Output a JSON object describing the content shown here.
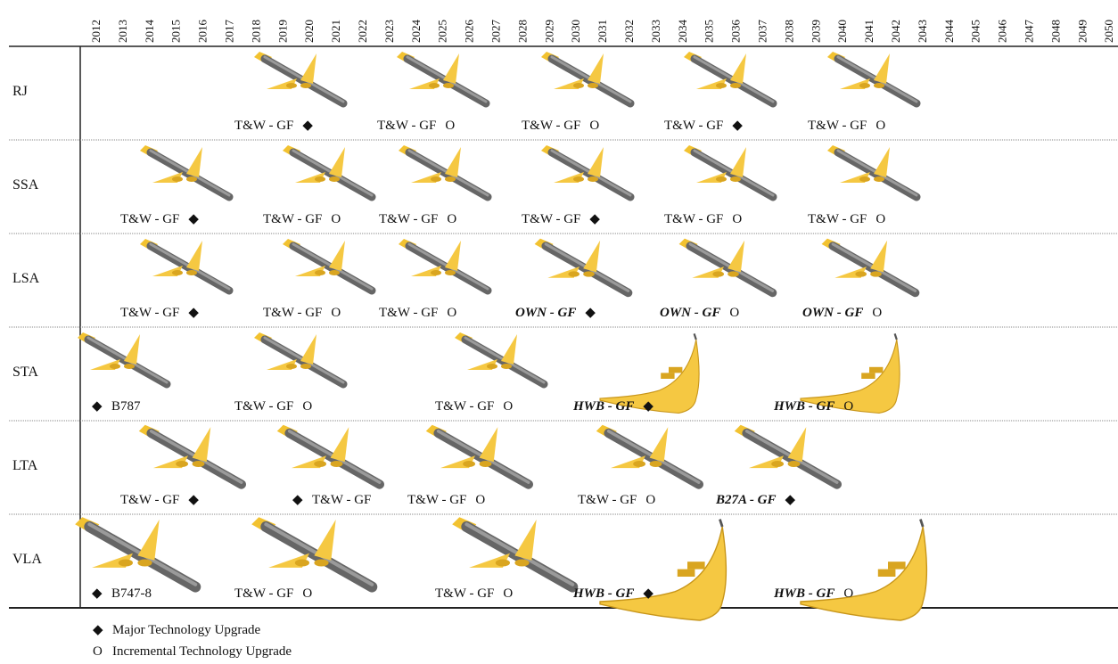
{
  "years": [
    "2012",
    "2013",
    "2014",
    "2015",
    "2016",
    "2017",
    "2018",
    "2019",
    "2020",
    "2021",
    "2022",
    "2023",
    "2024",
    "2025",
    "2026",
    "2027",
    "2028",
    "2029",
    "2030",
    "2031",
    "2032",
    "2033",
    "2034",
    "2035",
    "2036",
    "2037",
    "2038",
    "2039",
    "2040",
    "2041",
    "2042",
    "2043",
    "2044",
    "2045",
    "2046",
    "2047",
    "2048",
    "2049",
    "2050"
  ],
  "rows": [
    {
      "label": "RJ",
      "entries": [
        {
          "label": "T&W - GF",
          "marker": "◆"
        },
        {
          "label": "T&W - GF",
          "marker": "O"
        },
        {
          "label": "T&W - GF",
          "marker": "O"
        },
        {
          "label": "T&W - GF",
          "marker": "◆"
        },
        {
          "label": "T&W - GF",
          "marker": "O"
        }
      ]
    },
    {
      "label": "SSA",
      "entries": [
        {
          "label": "T&W - GF",
          "marker": "◆"
        },
        {
          "label": "T&W - GF",
          "marker": "O"
        },
        {
          "label": "T&W - GF",
          "marker": "O"
        },
        {
          "label": "T&W - GF",
          "marker": "◆"
        },
        {
          "label": "T&W - GF",
          "marker": "O"
        },
        {
          "label": "T&W - GF",
          "marker": "O"
        }
      ]
    },
    {
      "label": "LSA",
      "entries": [
        {
          "label": "T&W - GF",
          "marker": "◆"
        },
        {
          "label": "T&W - GF",
          "marker": "O"
        },
        {
          "label": "T&W - GF",
          "marker": "O"
        },
        {
          "label": "OWN - GF",
          "marker": "◆"
        },
        {
          "label": "OWN - GF",
          "marker": "O"
        },
        {
          "label": "OWN - GF",
          "marker": "O"
        }
      ]
    },
    {
      "label": "STA",
      "entries": [
        {
          "label": "B787",
          "marker": "◆"
        },
        {
          "label": "T&W - GF",
          "marker": "O"
        },
        {
          "label": "T&W - GF",
          "marker": "O"
        },
        {
          "label": "HWB - GF",
          "marker": "◆"
        },
        {
          "label": "HWB - GF",
          "marker": "O"
        }
      ]
    },
    {
      "label": "LTA",
      "entries": [
        {
          "label": "T&W - GF",
          "marker": "◆"
        },
        {
          "label": "T&W - GF",
          "marker": "◆"
        },
        {
          "label": "T&W - GF",
          "marker": "O"
        },
        {
          "label": "T&W - GF",
          "marker": "O"
        },
        {
          "label": "B27A - GF",
          "marker": "◆"
        }
      ]
    },
    {
      "label": "VLA",
      "entries": [
        {
          "label": "B747-8",
          "marker": "◆"
        },
        {
          "label": "T&W - GF",
          "marker": "O"
        },
        {
          "label": "T&W - GF",
          "marker": "O"
        },
        {
          "label": "HWB - GF",
          "marker": "◆"
        },
        {
          "label": "HWB - GF",
          "marker": "O"
        }
      ]
    }
  ],
  "legend": [
    {
      "marker": "◆",
      "label": "Major Technology Upgrade"
    },
    {
      "marker": "O",
      "label": "Incremental Technology Upgrade"
    }
  ]
}
